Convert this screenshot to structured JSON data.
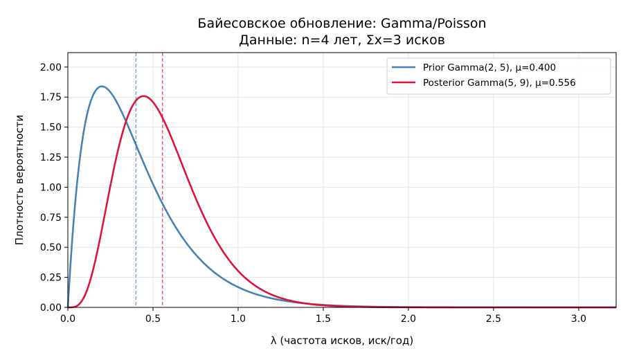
{
  "chart_data": {
    "type": "line",
    "title": "Байесовское обновление: Gamma/Poisson",
    "subtitle": "Данные: n=4 лет, Σx=3 исков",
    "xlabel": "λ (частота исков, иск/год)",
    "ylabel": "Плотность вероятности",
    "xlim": [
      0,
      3.22
    ],
    "ylim": [
      0,
      2.12
    ],
    "xticks": [
      0.0,
      0.5,
      1.0,
      1.5,
      2.0,
      2.5,
      3.0
    ],
    "xtick_labels": [
      "0.0",
      "0.5",
      "1.0",
      "1.5",
      "2.0",
      "2.5",
      "3.0"
    ],
    "yticks": [
      0.0,
      0.25,
      0.5,
      0.75,
      1.0,
      1.25,
      1.5,
      1.75,
      2.0
    ],
    "ytick_labels": [
      "0.00",
      "0.25",
      "0.50",
      "0.75",
      "1.00",
      "1.25",
      "1.50",
      "1.75",
      "2.00"
    ],
    "grid": true,
    "legend_position": "top-right",
    "series": [
      {
        "name": "Prior Gamma(2, 5), μ=0.400",
        "color": "#4682b4",
        "shape": 2,
        "rate": 5,
        "mean": 0.4,
        "x": [
          0,
          0.05,
          0.1,
          0.15,
          0.2,
          0.25,
          0.3,
          0.4,
          0.5,
          0.6,
          0.7,
          0.8,
          1.0,
          1.2,
          1.5,
          2.0,
          2.5,
          3.0
        ],
        "y": [
          0,
          0.974,
          1.516,
          1.771,
          1.839,
          1.791,
          1.673,
          1.353,
          1.026,
          0.747,
          0.528,
          0.366,
          0.168,
          0.074,
          0.021,
          0.002,
          0.0002,
          2e-05
        ]
      },
      {
        "name": "Posterior Gamma(5, 9), μ=0.556",
        "color": "#dc143c",
        "shape": 5,
        "rate": 9,
        "mean": 0.556,
        "x": [
          0,
          0.05,
          0.1,
          0.2,
          0.3,
          0.4,
          0.444,
          0.5,
          0.556,
          0.6,
          0.7,
          0.8,
          1.0,
          1.2,
          1.5,
          2.0,
          2.5,
          3.0
        ],
        "y": [
          0,
          0.012,
          0.148,
          1.146,
          1.776,
          1.757,
          1.764,
          1.698,
          1.597,
          1.526,
          1.274,
          1.027,
          0.607,
          0.329,
          0.118,
          0.014,
          0.0014,
          0.0001
        ]
      }
    ],
    "reference_lines": [
      {
        "x": 0.4,
        "color": "#4682b4",
        "style": "dashed"
      },
      {
        "x": 0.556,
        "color": "#dc143c",
        "style": "dashed"
      }
    ]
  }
}
